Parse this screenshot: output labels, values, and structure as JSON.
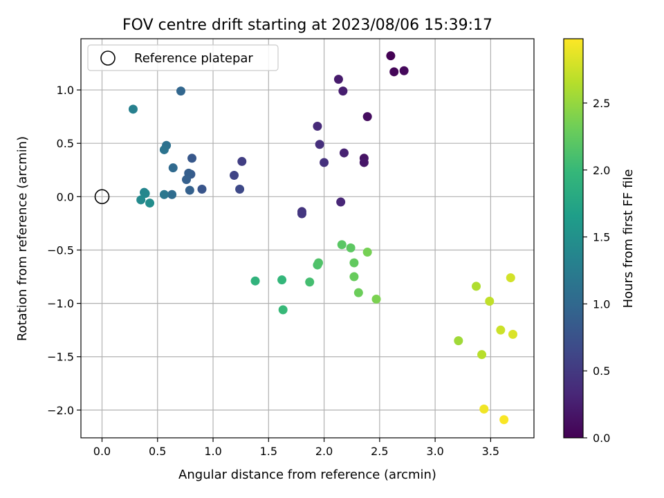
{
  "chart_data": {
    "type": "scatter",
    "title": "FOV centre drift starting at 2023/08/06 15:39:17",
    "xlabel": "Angular distance from reference (arcmin)",
    "ylabel": "Rotation from reference (arcmin)",
    "xlim": [
      -0.19,
      3.89
    ],
    "ylim": [
      -2.26,
      1.48
    ],
    "xticks": [
      0.0,
      0.5,
      1.0,
      1.5,
      2.0,
      2.5,
      3.0,
      3.5
    ],
    "xtick_labels": [
      "0.0",
      "0.5",
      "1.0",
      "1.5",
      "2.0",
      "2.5",
      "3.0",
      "3.5"
    ],
    "yticks": [
      1.0,
      0.5,
      0.0,
      -0.5,
      -1.0,
      -1.5,
      -2.0
    ],
    "ytick_labels": [
      "1.0",
      "0.5",
      "0.0",
      "−0.5",
      "−1.0",
      "−1.5",
      "−2.0"
    ],
    "grid": true,
    "legend": {
      "placement": "top-left",
      "entries": [
        {
          "label": "Reference platepar",
          "marker": "open-circle"
        }
      ]
    },
    "reference_point": {
      "x": 0.0,
      "y": 0.0
    },
    "colorbar": {
      "label": "Hours from first FF file",
      "colormap": "viridis",
      "range": [
        0.0,
        2.98
      ],
      "ticks": [
        0.0,
        0.5,
        1.0,
        1.5,
        2.0,
        2.5
      ],
      "tick_labels": [
        "0.0",
        "0.5",
        "1.0",
        "1.5",
        "2.0",
        "2.5"
      ]
    },
    "points": [
      {
        "x": 2.6,
        "y": 1.32,
        "c": 0.0
      },
      {
        "x": 2.63,
        "y": 1.17,
        "c": 0.04
      },
      {
        "x": 2.72,
        "y": 1.18,
        "c": 0.06
      },
      {
        "x": 2.39,
        "y": 0.75,
        "c": 0.1
      },
      {
        "x": 2.36,
        "y": 0.36,
        "c": 0.15
      },
      {
        "x": 2.36,
        "y": 0.32,
        "c": 0.18
      },
      {
        "x": 2.13,
        "y": 1.1,
        "c": 0.22
      },
      {
        "x": 2.17,
        "y": 0.99,
        "c": 0.25
      },
      {
        "x": 2.18,
        "y": 0.41,
        "c": 0.28
      },
      {
        "x": 2.15,
        "y": -0.05,
        "c": 0.32
      },
      {
        "x": 1.94,
        "y": 0.66,
        "c": 0.36
      },
      {
        "x": 1.96,
        "y": 0.49,
        "c": 0.4
      },
      {
        "x": 2.0,
        "y": 0.32,
        "c": 0.42
      },
      {
        "x": 1.8,
        "y": -0.14,
        "c": 0.45
      },
      {
        "x": 1.8,
        "y": -0.16,
        "c": 0.48
      },
      {
        "x": 1.26,
        "y": 0.33,
        "c": 0.55
      },
      {
        "x": 1.19,
        "y": 0.2,
        "c": 0.6
      },
      {
        "x": 1.24,
        "y": 0.07,
        "c": 0.65
      },
      {
        "x": 0.9,
        "y": 0.07,
        "c": 0.78
      },
      {
        "x": 0.81,
        "y": 0.36,
        "c": 0.82
      },
      {
        "x": 0.8,
        "y": 0.21,
        "c": 0.85
      },
      {
        "x": 0.78,
        "y": 0.22,
        "c": 0.88
      },
      {
        "x": 0.76,
        "y": 0.16,
        "c": 0.9
      },
      {
        "x": 0.79,
        "y": 0.06,
        "c": 0.92
      },
      {
        "x": 0.71,
        "y": 0.99,
        "c": 0.98
      },
      {
        "x": 0.64,
        "y": 0.27,
        "c": 1.02
      },
      {
        "x": 0.63,
        "y": 0.02,
        "c": 1.05
      },
      {
        "x": 0.58,
        "y": 0.48,
        "c": 1.1
      },
      {
        "x": 0.56,
        "y": 0.44,
        "c": 1.13
      },
      {
        "x": 0.56,
        "y": 0.02,
        "c": 1.18
      },
      {
        "x": 0.28,
        "y": 0.82,
        "c": 1.3
      },
      {
        "x": 0.38,
        "y": 0.04,
        "c": 1.35
      },
      {
        "x": 0.39,
        "y": 0.03,
        "c": 1.38
      },
      {
        "x": 0.35,
        "y": -0.03,
        "c": 1.42
      },
      {
        "x": 0.43,
        "y": -0.06,
        "c": 1.46
      },
      {
        "x": 1.38,
        "y": -0.79,
        "c": 1.92
      },
      {
        "x": 1.62,
        "y": -0.78,
        "c": 1.97
      },
      {
        "x": 1.63,
        "y": -1.06,
        "c": 2.0
      },
      {
        "x": 1.87,
        "y": -0.8,
        "c": 2.08
      },
      {
        "x": 1.94,
        "y": -0.64,
        "c": 2.12
      },
      {
        "x": 1.95,
        "y": -0.62,
        "c": 2.15
      },
      {
        "x": 2.16,
        "y": -0.45,
        "c": 2.2
      },
      {
        "x": 2.24,
        "y": -0.48,
        "c": 2.22
      },
      {
        "x": 2.27,
        "y": -0.62,
        "c": 2.25
      },
      {
        "x": 2.27,
        "y": -0.75,
        "c": 2.28
      },
      {
        "x": 2.31,
        "y": -0.9,
        "c": 2.3
      },
      {
        "x": 2.39,
        "y": -0.52,
        "c": 2.35
      },
      {
        "x": 2.47,
        "y": -0.96,
        "c": 2.38
      },
      {
        "x": 3.21,
        "y": -1.35,
        "c": 2.55
      },
      {
        "x": 3.37,
        "y": -0.84,
        "c": 2.62
      },
      {
        "x": 3.42,
        "y": -1.48,
        "c": 2.66
      },
      {
        "x": 3.49,
        "y": -0.98,
        "c": 2.7
      },
      {
        "x": 3.59,
        "y": -1.25,
        "c": 2.75
      },
      {
        "x": 3.68,
        "y": -0.76,
        "c": 2.78
      },
      {
        "x": 3.7,
        "y": -1.29,
        "c": 2.82
      },
      {
        "x": 3.44,
        "y": -1.99,
        "c": 2.92
      },
      {
        "x": 3.62,
        "y": -2.09,
        "c": 2.96
      }
    ]
  }
}
